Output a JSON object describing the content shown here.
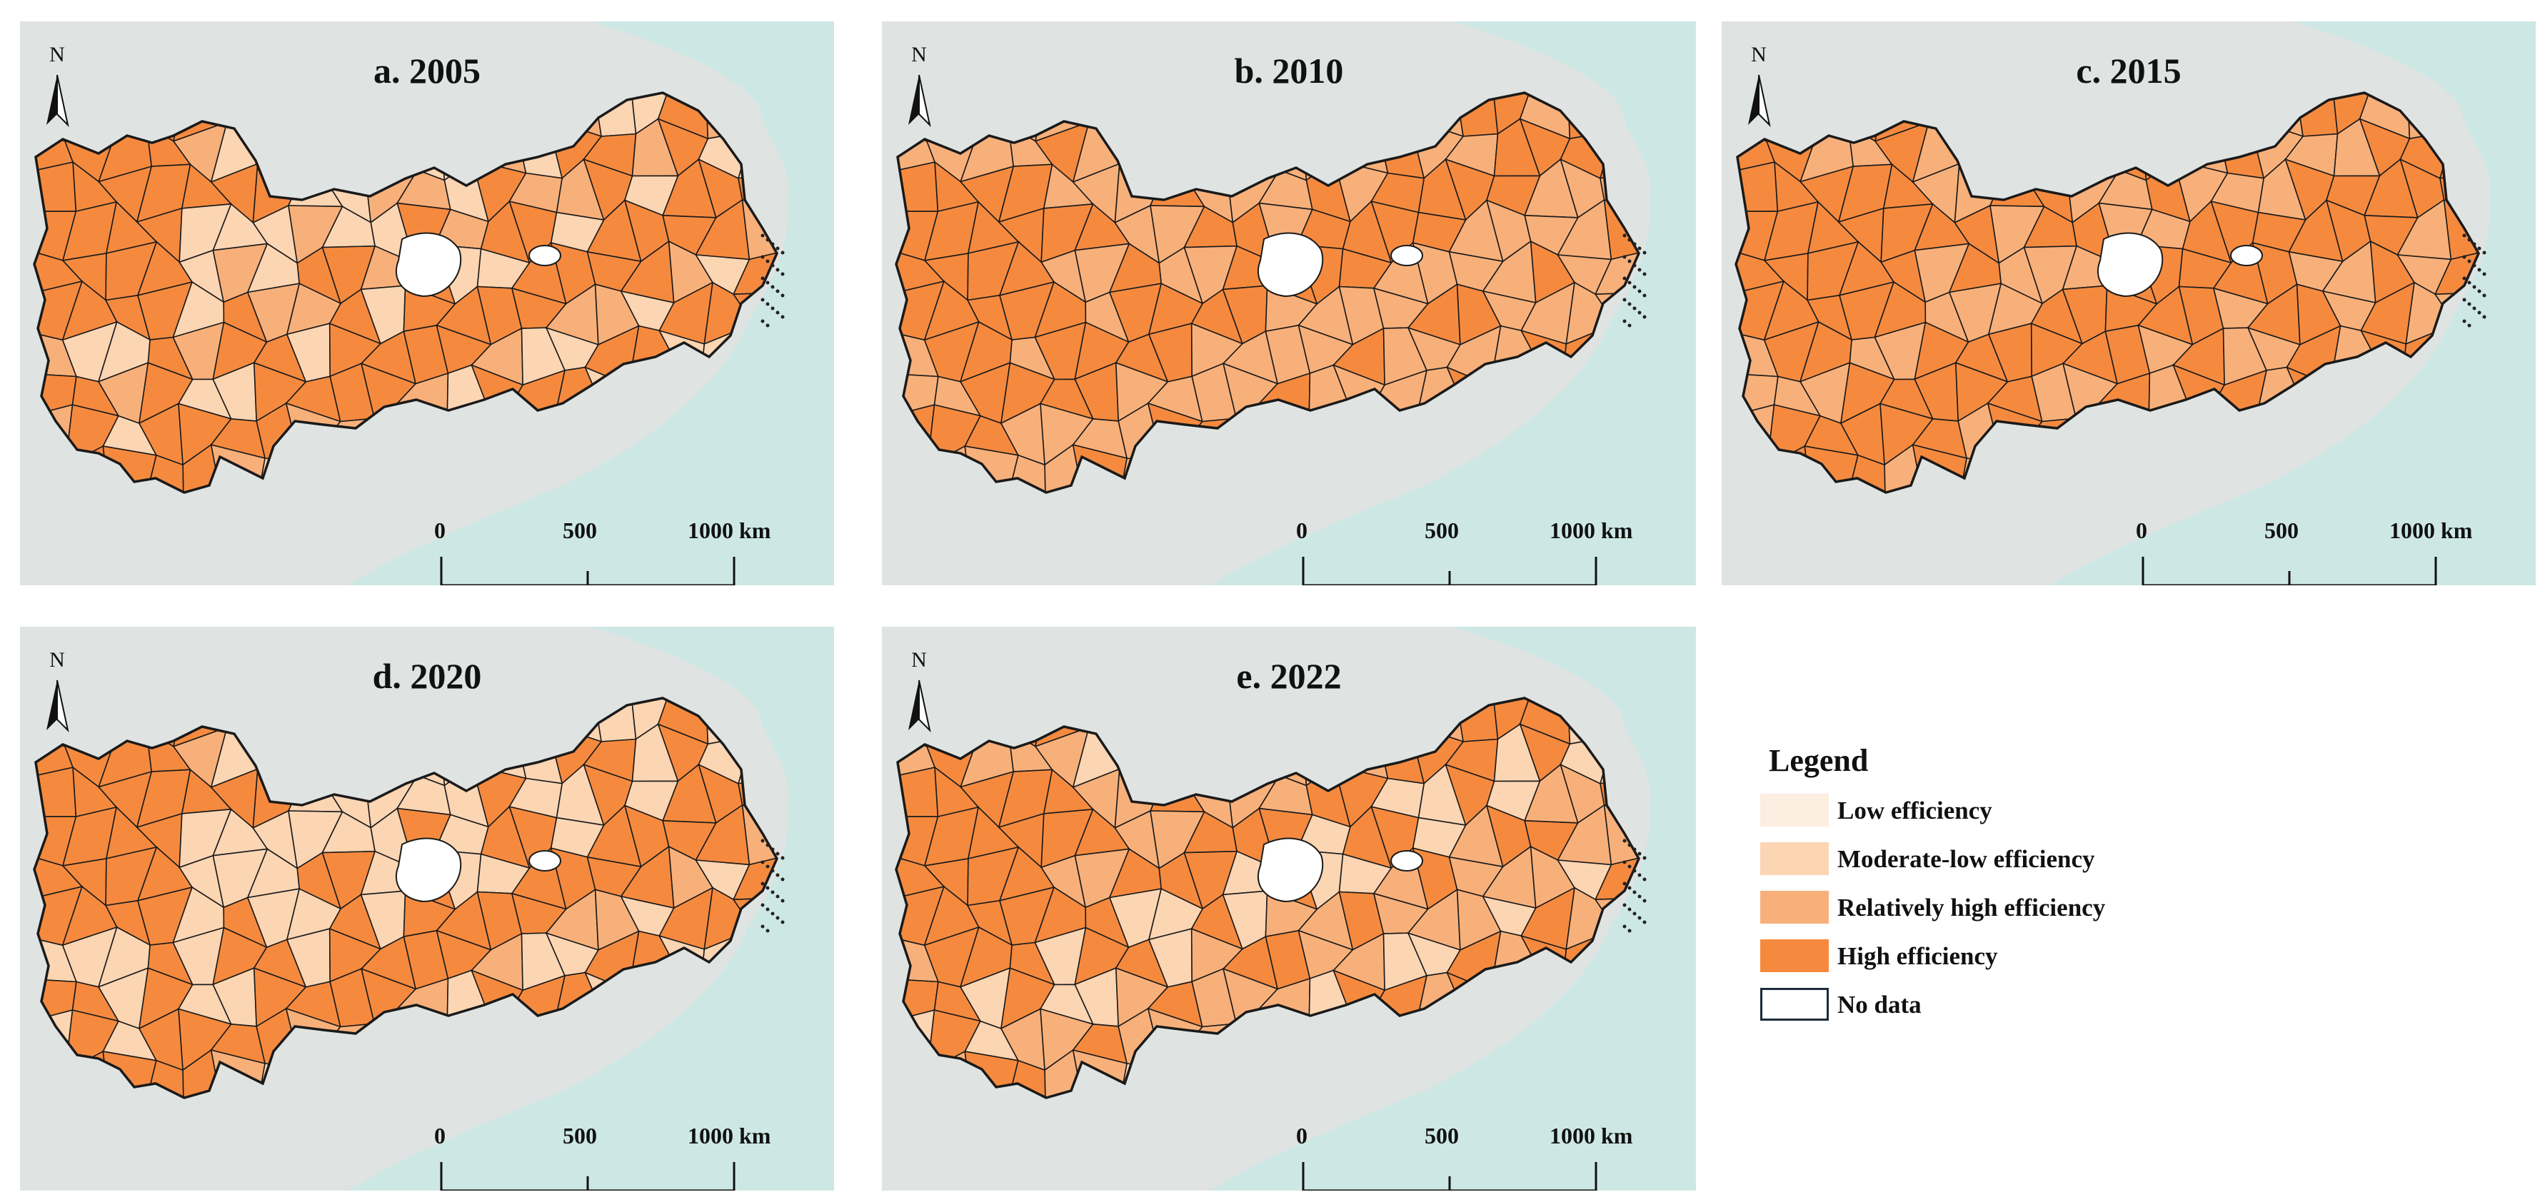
{
  "panels": [
    {
      "title": "a. 2005",
      "palette": [
        3,
        2,
        3,
        1,
        1,
        3,
        1,
        2,
        3,
        2,
        1,
        2,
        3,
        2,
        2,
        1,
        3,
        2,
        1,
        1,
        2,
        1,
        3,
        2,
        1,
        2,
        2,
        1,
        3,
        1
      ]
    },
    {
      "title": "b. 2010",
      "palette": [
        3,
        3,
        2,
        2,
        3,
        2,
        3,
        2,
        2,
        3,
        2,
        3,
        2,
        3,
        2,
        3,
        2,
        2,
        3,
        2,
        3,
        1,
        2,
        3,
        2,
        2,
        3,
        2,
        2,
        3
      ]
    },
    {
      "title": "c. 2015",
      "palette": [
        3,
        1,
        2,
        3,
        3,
        2,
        3,
        2,
        3,
        2,
        3,
        2,
        3,
        2,
        2,
        3,
        2,
        2,
        3,
        2,
        3,
        2,
        2,
        3,
        2,
        3,
        2,
        2,
        3,
        2
      ]
    },
    {
      "title": "d. 2020",
      "palette": [
        3,
        2,
        3,
        2,
        1,
        3,
        1,
        2,
        3,
        1,
        1,
        2,
        3,
        1,
        1,
        1,
        3,
        1,
        1,
        1,
        2,
        1,
        3,
        1,
        1,
        2,
        1,
        1,
        3,
        1
      ]
    },
    {
      "title": "e. 2022",
      "palette": [
        3,
        2,
        2,
        3,
        1,
        2,
        3,
        1,
        2,
        1,
        2,
        1,
        3,
        1,
        2,
        1,
        2,
        1,
        3,
        1,
        2,
        1,
        3,
        2,
        1,
        2,
        1,
        1,
        3,
        2
      ]
    }
  ],
  "north_label": "N",
  "scale": {
    "labels": [
      "0",
      "500",
      "1000 km"
    ]
  },
  "legend": {
    "title": "Legend",
    "items": [
      {
        "label": "Low efficiency",
        "color": "#fdeee2"
      },
      {
        "label": "Moderate-low efficiency",
        "color": "#fcd5b3"
      },
      {
        "label": "Relatively high efficiency",
        "color": "#f8b07a"
      },
      {
        "label": "High efficiency",
        "color": "#f58a3f"
      },
      {
        "label": "No data",
        "color": "#ffffff"
      }
    ]
  },
  "colors": {
    "sea": "#cde8e4",
    "land": "#dfe3e2",
    "outline": "#1a1a1a"
  }
}
